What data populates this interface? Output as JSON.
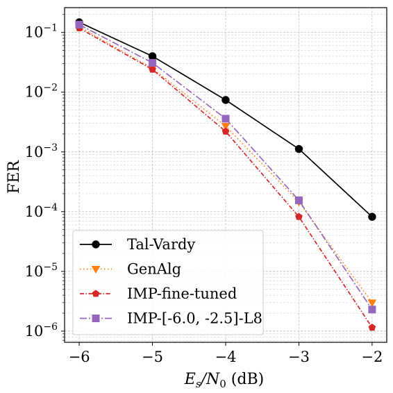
{
  "chart_data": {
    "type": "line",
    "xlabel_main": "E",
    "xlabel_sub1": "s",
    "xlabel_slash": "/N",
    "xlabel_sub2": "0",
    "xlabel_unit": " (dB)",
    "ylabel": "FER",
    "xlim": [
      -6.2,
      -1.8
    ],
    "xticks": [
      -6,
      -5,
      -4,
      -3,
      -2
    ],
    "xtick_labels": [
      "−6",
      "−5",
      "−4",
      "−3",
      "−2"
    ],
    "yscale": "log",
    "ylim": [
      6.5e-07,
      0.26
    ],
    "yticks": [
      1e-06,
      1e-05,
      0.0001,
      0.001,
      0.01,
      0.1
    ],
    "ytick_mantissa": "10",
    "ytick_exponents": [
      "−6",
      "−5",
      "−4",
      "−3",
      "−2",
      "−1"
    ],
    "grid": "major and minor",
    "legend_position": "lower-left",
    "x": [
      -6,
      -5,
      -4,
      -3,
      -2
    ],
    "series": [
      {
        "name": "Tal-Vardy",
        "values": [
          0.148,
          0.04,
          0.0074,
          0.00112,
          8.2e-05
        ],
        "color": "#000000",
        "marker": "circle",
        "dash": ""
      },
      {
        "name": "GenAlg",
        "values": [
          0.125,
          0.025,
          0.0027,
          0.000145,
          3e-06
        ],
        "color": "#ff7f0e",
        "marker": "triangle-down",
        "dash": "1.5,3.5"
      },
      {
        "name": "IMP-fine-tuned",
        "values": [
          0.118,
          0.024,
          0.0022,
          8.2e-05,
          1.15e-06
        ],
        "color": "#d62728",
        "marker": "pentagon",
        "dash": "6,2.5,1.5,2.5"
      },
      {
        "name": "IMP-[-6.0, -2.5]-L8",
        "values": [
          0.135,
          0.031,
          0.0036,
          0.000155,
          2.3e-06
        ],
        "color": "#9467bd",
        "marker": "square",
        "dash": "10,3,2,3"
      }
    ]
  }
}
